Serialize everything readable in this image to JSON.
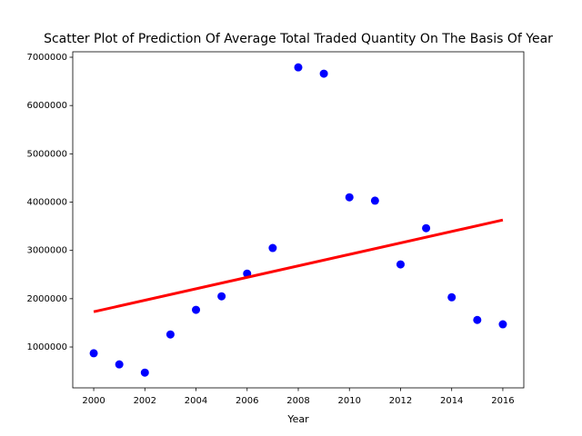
{
  "chart_data": {
    "type": "scatter",
    "title": "Scatter Plot of Prediction Of Average Total Traded Quantity On The Basis Of Year",
    "x_label": "Year",
    "series": [
      {
        "color": "#0000ff",
        "x": [
          2000,
          2001,
          2002,
          2003,
          2004,
          2005,
          2006,
          2007,
          2008,
          2009,
          2010,
          2011,
          2012,
          2013,
          2014,
          2015,
          2016
        ],
        "values": [
          870000,
          640000,
          470000,
          1260000,
          1770000,
          2050000,
          2520000,
          3050000,
          6790000,
          6660000,
          4100000,
          4030000,
          2710000,
          3460000,
          2030000,
          1560000,
          1470000
        ]
      },
      {
        "color": "#ff0000",
        "line": true,
        "x": [
          2000,
          2016
        ],
        "values": [
          1730000,
          3630000
        ]
      }
    ],
    "xlim": [
      1999.18,
      2016.82
    ],
    "xticks": [
      2000,
      2002,
      2004,
      2006,
      2008,
      2010,
      2012,
      2014,
      2016
    ],
    "ylim": [
      154000,
      7113000
    ],
    "yticks": [
      1000000,
      2000000,
      3000000,
      4000000,
      5000000,
      6000000,
      7000000
    ]
  }
}
